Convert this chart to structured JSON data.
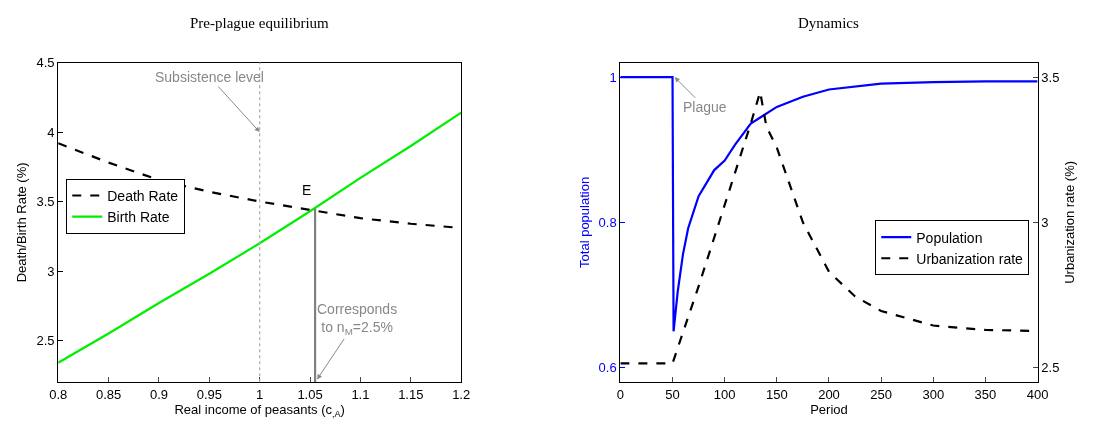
{
  "chart_data": [
    {
      "type": "line",
      "title": "Pre-plague equilibrium",
      "xlabel": "Real income of peasants (c$_{,A}$)",
      "ylabel": "Death/Birth Rate (%)",
      "x": [
        0.8,
        0.85,
        0.9,
        0.95,
        1.0,
        1.05,
        1.1,
        1.15,
        1.2
      ],
      "series": [
        {
          "name": "Death Rate",
          "color": "#000000",
          "line_style": "dashed",
          "values": [
            3.92,
            3.78,
            3.655,
            3.57,
            3.5,
            3.44,
            3.38,
            3.34,
            3.31
          ]
        },
        {
          "name": "Birth Rate",
          "color": "#00ee00",
          "line_style": "solid",
          "values": [
            2.34,
            2.55,
            2.77,
            2.98,
            3.2,
            3.43,
            3.67,
            3.9,
            4.14
          ]
        },
        {
          "color": "#808080",
          "line_style": "solid",
          "x": [
            1.055,
            1.055
          ],
          "values": [
            2.2,
            3.45
          ]
        }
      ],
      "ref_lines": [
        {
          "axis": "x",
          "value": 1,
          "color": "#aaaaaa",
          "line_style": "dotted"
        }
      ],
      "annotations": [
        {
          "text": "Subsistence level",
          "x": 1,
          "y": 4.0
        },
        "E",
        {
          "text": "Corresponds to n$_{M}$=2.5%",
          "x": 1.057,
          "y": 2.22
        }
      ],
      "xlim": [
        0.8,
        1.2
      ],
      "ylim": [
        2.2,
        4.5
      ],
      "xticks": [
        0.8,
        0.85,
        0.9,
        0.95,
        1,
        1.05,
        1.1,
        1.15,
        1.2
      ],
      "yticks": [
        2.5,
        3,
        3.5,
        4,
        4.5
      ],
      "grid": false,
      "legend": "left",
      "marker": "none"
    },
    {
      "type": "line",
      "title": "Dynamics",
      "xlabel": "Period",
      "ylabel": "Total population",
      "y2label": "Urbanization rate (%)",
      "series": [
        {
          "name": "Population",
          "color": "#0000ff",
          "line_style": "solid",
          "x": [
            0,
            50,
            51,
            55,
            60,
            65,
            75,
            90,
            100,
            110,
            125,
            150,
            175,
            200,
            250,
            300,
            350,
            400
          ],
          "values": [
            1,
            1,
            0.65,
            0.705,
            0.756,
            0.792,
            0.836,
            0.872,
            0.885,
            0.907,
            0.936,
            0.959,
            0.973,
            0.983,
            0.991,
            0.993,
            0.994,
            0.994
          ]
        },
        {
          "name": "Urbanization rate",
          "color": "#000000",
          "line_style": "dashed",
          "axis": "y2",
          "x": [
            0,
            50,
            75,
            100,
            125,
            134,
            140,
            150,
            175,
            200,
            225,
            250,
            300,
            350,
            400
          ],
          "values": [
            2.515,
            2.515,
            2.78,
            3.06,
            3.34,
            3.449,
            3.33,
            3.257,
            3.0,
            2.83,
            2.745,
            2.695,
            2.645,
            2.63,
            2.626
          ]
        }
      ],
      "annotations": [
        {
          "text": "Plague",
          "x": 52,
          "y": 1
        }
      ],
      "xlim": [
        0,
        400
      ],
      "ylim": [
        0.58,
        1.02
      ],
      "y2lim": [
        2.45,
        3.55
      ],
      "xticks": [
        0,
        50,
        100,
        150,
        200,
        250,
        300,
        350,
        400
      ],
      "yticks": [
        0.6,
        0.8,
        1
      ],
      "y2ticks": [
        2.5,
        3,
        3.5
      ],
      "grid": false,
      "legend": "right",
      "marker": "none"
    }
  ]
}
